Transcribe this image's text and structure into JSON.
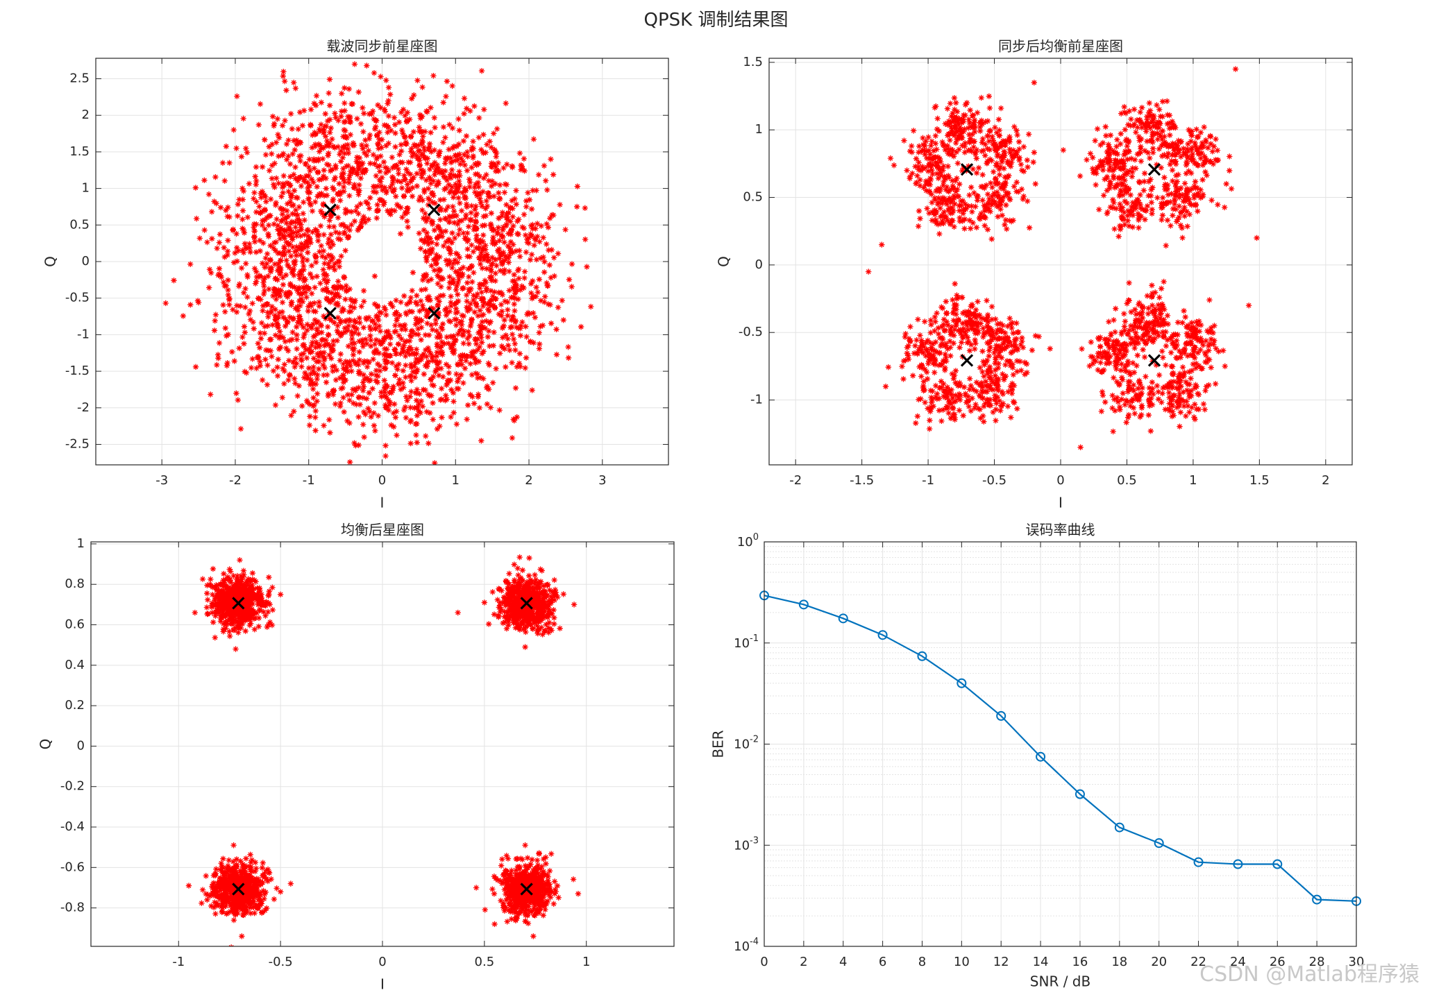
{
  "figure": {
    "title": "QPSK 调制结果图",
    "watermark": "CSDN @Matlab程序猿"
  },
  "colors": {
    "scatter": "#ff0000",
    "reference": "#000000",
    "ber_line": "#0072bd",
    "grid": "#e3e3e3",
    "axis": "#262626"
  },
  "chart_data": [
    {
      "type": "scatter",
      "title": "载波同步前星座图",
      "xlabel": "I",
      "ylabel": "Q",
      "xlim": [
        -3.9,
        3.9
      ],
      "ylim": [
        -2.78,
        2.78
      ],
      "xticks": [
        -3,
        -2,
        -1,
        0,
        1,
        2,
        3
      ],
      "yticks": [
        -2.5,
        -2,
        -1.5,
        -1,
        -0.5,
        0,
        0.5,
        1,
        1.5,
        2,
        2.5
      ],
      "reference_points": [
        [
          0.707,
          0.707
        ],
        [
          -0.707,
          0.707
        ],
        [
          -0.707,
          -0.707
        ],
        [
          0.707,
          -0.707
        ]
      ],
      "points": [
        [
          2.31,
          0.16
        ],
        [
          -1.41,
          1.07
        ],
        [
          1.03,
          1.45
        ],
        [
          -0.16,
          -1.62
        ],
        [
          0.41,
          1.44
        ],
        [
          0.65,
          -2.07
        ],
        [
          -0.72,
          -1.28
        ],
        [
          0.99,
          -0.79
        ],
        [
          0.81,
          -0.22
        ],
        [
          -0.25,
          -1.55
        ],
        [
          1.34,
          0.29
        ],
        [
          -1.28,
          -1.22
        ],
        [
          -0.88,
          0.89
        ],
        [
          -0.12,
          1.46
        ],
        [
          1.75,
          0.12
        ],
        [
          -0.55,
          -0.98
        ],
        [
          -0.45,
          2.36
        ],
        [
          0.33,
          1.26
        ],
        [
          -1.27,
          -0.42
        ],
        [
          1.04,
          0.87
        ],
        [
          -0.68,
          1.26
        ],
        [
          0.06,
          -1.86
        ],
        [
          -1.02,
          -0.86
        ],
        [
          2.02,
          -1.1
        ],
        [
          -1.75,
          0.86
        ],
        [
          0.73,
          -0.85
        ],
        [
          -0.31,
          0.97
        ],
        [
          1.05,
          1.23
        ],
        [
          0.8,
          -1.25
        ],
        [
          -1.09,
          0.18
        ],
        [
          0.5,
          -1.95
        ],
        [
          -2.2,
          -0.19
        ],
        [
          1.29,
          -0.61
        ],
        [
          0.14,
          1.06
        ],
        [
          -1.69,
          -1.12
        ],
        [
          -0.66,
          -1.77
        ],
        [
          1.65,
          0.47
        ],
        [
          0.17,
          -1.2
        ],
        [
          -1.98,
          -0.69
        ],
        [
          -2.54,
          1.01
        ],
        [
          0.26,
          2.04
        ],
        [
          -0.32,
          -0.99
        ],
        [
          1.82,
          -0.81
        ],
        [
          -0.91,
          -2.13
        ],
        [
          0.94,
          -0.29
        ],
        [
          1.53,
          1.53
        ],
        [
          -0.06,
          1.03
        ],
        [
          -1.34,
          0.71
        ],
        [
          -0.21,
          2.68
        ],
        [
          -0.57,
          0.95
        ],
        [
          0.49,
          -0.92
        ],
        [
          2.05,
          0.45
        ],
        [
          1.04,
          -1.74
        ],
        [
          -0.67,
          -0.51
        ],
        [
          -1.27,
          0.36
        ],
        [
          -0.95,
          0.69
        ],
        [
          0.57,
          0.43
        ],
        [
          -1.57,
          -0.03
        ],
        [
          1.04,
          0.37
        ],
        [
          -2.1,
          0.74
        ],
        [
          0.11,
          -1.13
        ],
        [
          -1.11,
          0.09
        ],
        [
          1.44,
          -1.03
        ],
        [
          0.09,
          2.38
        ],
        [
          -0.26,
          -1.16
        ],
        [
          -1.57,
          0.6
        ],
        [
          0.62,
          1.41
        ],
        [
          -0.75,
          1.65
        ],
        [
          1.45,
          0.89
        ],
        [
          1.16,
          -0.29
        ],
        [
          -0.85,
          -1.14
        ],
        [
          0.47,
          -1.26
        ],
        [
          1.2,
          2.06
        ],
        [
          -2.5,
          -0.56
        ],
        [
          -0.32,
          -2.51
        ],
        [
          0.91,
          1.05
        ],
        [
          1.94,
          1.24
        ],
        [
          -1.68,
          1.87
        ],
        [
          2.12,
          -0.42
        ],
        [
          -0.88,
          -1.55
        ],
        [
          -0.22,
          1.25
        ],
        [
          -1.63,
          -1.62
        ],
        [
          0.57,
          -1.54
        ],
        [
          0.19,
          -1.43
        ],
        [
          -0.17,
          -2.05
        ],
        [
          0.86,
          0.59
        ],
        [
          -1.16,
          1.61
        ],
        [
          1.48,
          -0.4
        ],
        [
          0.86,
          -1.9
        ],
        [
          2.47,
          -0.8
        ],
        [
          -2.08,
          1.35
        ],
        [
          1.82,
          -1.73
        ],
        [
          -1.41,
          -0.76
        ],
        [
          -0.04,
          1.67
        ],
        [
          -0.77,
          -0.78
        ],
        [
          -1.03,
          -0.34
        ],
        [
          -0.33,
          0.43
        ],
        [
          0.19,
          -0.53
        ],
        [
          -0.5,
          0.15
        ],
        [
          -0.1,
          -0.2
        ],
        [
          0.42,
          -0.15
        ],
        [
          0.25,
          0.38
        ],
        [
          -0.25,
          -0.4
        ],
        [
          0.6,
          0.55
        ],
        [
          -0.6,
          -0.6
        ],
        [
          0.55,
          -0.6
        ],
        [
          -0.6,
          0.6
        ],
        [
          0.73,
          0.04
        ],
        [
          -0.77,
          0.05
        ],
        [
          0.03,
          0.81
        ],
        [
          -0.05,
          -0.8
        ]
      ]
    },
    {
      "type": "scatter",
      "title": "同步后均衡前星座图",
      "xlabel": "I",
      "ylabel": "Q",
      "xlim": [
        -2.2,
        2.2
      ],
      "ylim": [
        -1.48,
        1.53
      ],
      "xticks": [
        -2,
        -1.5,
        -1,
        -0.5,
        0,
        0.5,
        1,
        1.5,
        2
      ],
      "yticks": [
        -1,
        -0.5,
        0,
        0.5,
        1,
        1.5
      ],
      "reference_points": [
        [
          0.707,
          0.707
        ],
        [
          -0.707,
          0.707
        ],
        [
          -0.707,
          -0.707
        ],
        [
          0.707,
          -0.707
        ]
      ],
      "points": [
        [
          -0.72,
          0.45
        ],
        [
          -0.57,
          0.81
        ],
        [
          -0.98,
          0.63
        ],
        [
          -0.77,
          0.99
        ],
        [
          -0.37,
          0.76
        ],
        [
          -0.68,
          0.27
        ],
        [
          -1.04,
          0.94
        ],
        [
          -0.45,
          1.16
        ],
        [
          -0.97,
          0.33
        ],
        [
          -0.19,
          0.6
        ],
        [
          -0.85,
          0.73
        ],
        [
          -0.6,
          0.38
        ],
        [
          -1.16,
          0.7
        ],
        [
          -0.5,
          0.52
        ],
        [
          -0.8,
          1.15
        ],
        [
          0.69,
          0.41
        ],
        [
          0.93,
          0.83
        ],
        [
          0.44,
          0.64
        ],
        [
          0.61,
          1.05
        ],
        [
          1.02,
          0.44
        ],
        [
          0.26,
          0.92
        ],
        [
          1.13,
          0.95
        ],
        [
          0.77,
          1.21
        ],
        [
          0.35,
          0.38
        ],
        [
          1.25,
          0.6
        ],
        [
          0.83,
          0.29
        ],
        [
          0.48,
          1.17
        ],
        [
          1.09,
          0.76
        ],
        [
          0.58,
          0.82
        ],
        [
          0.87,
          0.58
        ],
        [
          -0.67,
          -0.44
        ],
        [
          -1.05,
          -0.74
        ],
        [
          -0.48,
          -0.92
        ],
        [
          -0.85,
          -1.06
        ],
        [
          -0.39,
          -0.57
        ],
        [
          -0.89,
          -0.32
        ],
        [
          -1.17,
          -0.51
        ],
        [
          -0.58,
          -1.16
        ],
        [
          -0.27,
          -0.81
        ],
        [
          -0.98,
          -0.93
        ],
        [
          -0.74,
          -0.68
        ],
        [
          -0.55,
          -0.39
        ],
        [
          -1.08,
          -1.12
        ],
        [
          -0.35,
          -1.02
        ],
        [
          -0.83,
          -0.5
        ],
        [
          0.73,
          -0.42
        ],
        [
          0.42,
          -0.77
        ],
        [
          1.01,
          -0.61
        ],
        [
          0.79,
          -1.07
        ],
        [
          0.39,
          -1.06
        ],
        [
          1.1,
          -0.9
        ],
        [
          0.62,
          -0.31
        ],
        [
          0.93,
          -0.34
        ],
        [
          1.24,
          -0.75
        ],
        [
          0.54,
          -0.55
        ],
        [
          0.85,
          -0.8
        ],
        [
          0.29,
          -0.55
        ],
        [
          0.68,
          -1.23
        ],
        [
          1.16,
          -0.45
        ],
        [
          0.47,
          -0.95
        ],
        [
          -1.35,
          0.15
        ],
        [
          1.42,
          -0.3
        ],
        [
          0.02,
          0.85
        ],
        [
          -0.08,
          -0.62
        ],
        [
          1.32,
          1.45
        ],
        [
          -1.45,
          -0.05
        ],
        [
          0.15,
          -1.35
        ],
        [
          -0.2,
          1.35
        ],
        [
          1.48,
          0.2
        ],
        [
          -1.32,
          -0.9
        ]
      ]
    },
    {
      "type": "scatter",
      "title": "均衡后星座图",
      "xlabel": "I",
      "ylabel": "Q",
      "xlim": [
        -1.43,
        1.43
      ],
      "ylim": [
        -0.99,
        1.01
      ],
      "xticks": [
        -1,
        -0.5,
        0,
        0.5,
        1
      ],
      "yticks": [
        -0.8,
        -0.6,
        -0.4,
        -0.2,
        0,
        0.2,
        0.4,
        0.6,
        0.8,
        1
      ],
      "reference_points": [
        [
          0.707,
          0.707
        ],
        [
          -0.707,
          0.707
        ],
        [
          -0.707,
          -0.707
        ],
        [
          0.707,
          -0.707
        ]
      ],
      "points": [
        [
          -0.71,
          0.71
        ],
        [
          -0.78,
          0.64
        ],
        [
          -0.64,
          0.78
        ],
        [
          -0.63,
          0.66
        ],
        [
          -0.8,
          0.77
        ],
        [
          -0.92,
          0.66
        ],
        [
          -0.5,
          0.75
        ],
        [
          -0.72,
          0.48
        ],
        [
          -0.7,
          0.92
        ],
        [
          -0.56,
          0.6
        ],
        [
          0.71,
          0.71
        ],
        [
          0.62,
          0.78
        ],
        [
          0.81,
          0.65
        ],
        [
          0.6,
          0.64
        ],
        [
          0.85,
          0.76
        ],
        [
          0.5,
          0.71
        ],
        [
          0.94,
          0.7
        ],
        [
          0.7,
          0.49
        ],
        [
          0.72,
          0.93
        ],
        [
          0.37,
          0.66
        ],
        [
          -0.71,
          -0.71
        ],
        [
          -0.62,
          -0.79
        ],
        [
          -0.82,
          -0.64
        ],
        [
          -0.58,
          -0.63
        ],
        [
          -0.86,
          -0.76
        ],
        [
          -0.95,
          -0.69
        ],
        [
          -0.5,
          -0.72
        ],
        [
          -0.73,
          -0.49
        ],
        [
          -0.69,
          -0.94
        ],
        [
          -0.45,
          -0.68
        ],
        [
          0.71,
          -0.71
        ],
        [
          0.79,
          -0.62
        ],
        [
          0.62,
          -0.81
        ],
        [
          0.6,
          -0.66
        ],
        [
          0.84,
          -0.78
        ],
        [
          0.46,
          -0.7
        ],
        [
          0.96,
          -0.73
        ],
        [
          0.7,
          -0.49
        ],
        [
          0.74,
          -0.94
        ],
        [
          0.55,
          -0.88
        ]
      ]
    },
    {
      "type": "line",
      "title": "误码率曲线",
      "xlabel": "SNR / dB",
      "ylabel": "BER",
      "yscale": "log",
      "xlim": [
        0,
        30
      ],
      "ylim": [
        0.0001,
        1
      ],
      "xticks": [
        0,
        2,
        4,
        6,
        8,
        10,
        12,
        14,
        16,
        18,
        20,
        22,
        24,
        26,
        28,
        30
      ],
      "ytick_labels": [
        {
          "base": "10",
          "exp": "0"
        },
        {
          "base": "10",
          "exp": "-1"
        },
        {
          "base": "10",
          "exp": "-2"
        },
        {
          "base": "10",
          "exp": "-3"
        },
        {
          "base": "10",
          "exp": "-4"
        }
      ],
      "series": [
        {
          "name": "BER",
          "x": [
            0,
            2,
            4,
            6,
            8,
            10,
            12,
            14,
            16,
            18,
            20,
            22,
            24,
            26,
            28,
            30
          ],
          "values": [
            0.295,
            0.24,
            0.175,
            0.12,
            0.074,
            0.04,
            0.019,
            0.0075,
            0.0032,
            0.0015,
            0.00105,
            0.00068,
            0.00065,
            0.00065,
            0.00029,
            0.00028
          ]
        }
      ]
    }
  ]
}
